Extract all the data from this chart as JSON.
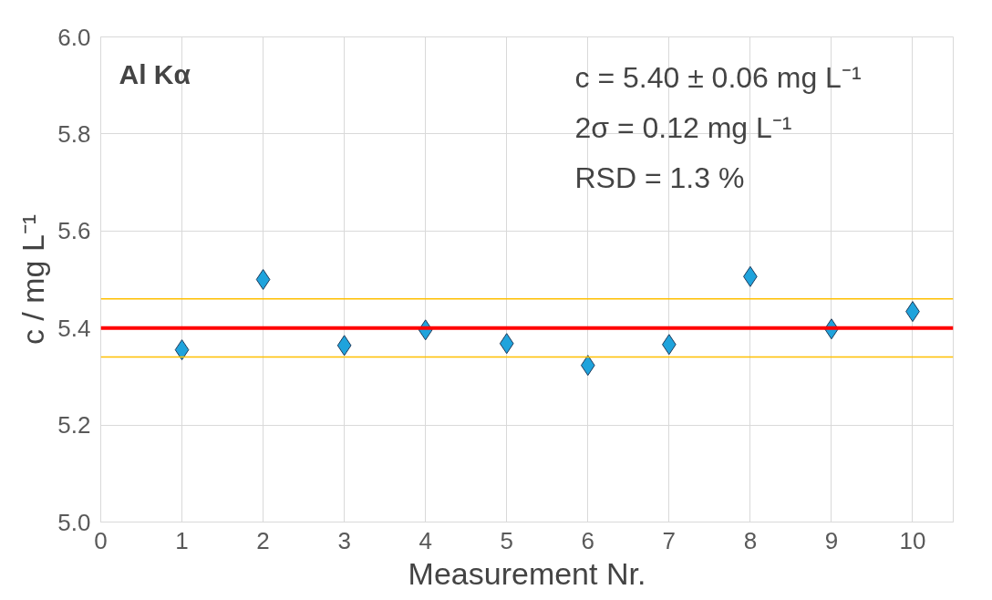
{
  "chart_data": {
    "type": "scatter",
    "xlabel": "Measurement Nr.",
    "ylabel": "c / mg L⁻¹",
    "x": [
      1,
      2,
      3,
      4,
      5,
      6,
      7,
      8,
      9,
      10
    ],
    "series": [
      {
        "color": "#1fa3dc",
        "values": [
          5.355,
          5.5,
          5.364,
          5.396,
          5.368,
          5.323,
          5.366,
          5.506,
          5.398,
          5.434
        ]
      }
    ],
    "xlim": [
      0,
      10.5
    ],
    "xticks": [
      0,
      1,
      2,
      3,
      4,
      5,
      6,
      7,
      8,
      9,
      10
    ],
    "ylim": [
      5.0,
      6.0
    ],
    "yticks": [
      {
        "value": 5.0,
        "label": "5.0"
      },
      5.2,
      5.4,
      5.6,
      5.8,
      {
        "value": 6.0,
        "label": "6.0"
      }
    ],
    "ref_lines": [
      {
        "axis": "y",
        "value": 5.4,
        "color": "#ff0000"
      },
      {
        "axis": "y",
        "value": 5.46,
        "color": "#ffc000"
      },
      {
        "axis": "y",
        "value": 5.34,
        "color": "#ffc000"
      }
    ],
    "annotations": [
      "Al Kα",
      "c = 5.40 ± 0.06 mg L⁻¹",
      "2σ  = 0.12 mg L⁻¹",
      "RSD = 1.3 %"
    ],
    "grid": true,
    "marker": "diamond"
  }
}
